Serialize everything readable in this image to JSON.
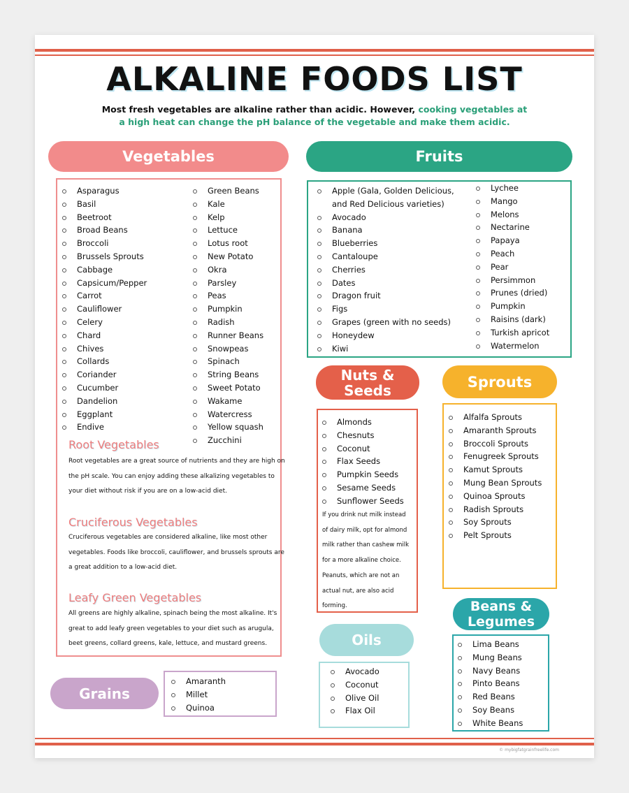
{
  "title": "ALKALINE FOODS LIST",
  "intro": {
    "plain": "Most fresh vegetables are alkaline rather than acidic. However, ",
    "highlight": "cooking vegetables at a high heat can change the pH balance of the vegetable and make them acidic."
  },
  "colors": {
    "vegetables": "#f28b8b",
    "fruits": "#2ba584",
    "nuts": "#e4604a",
    "sprouts": "#f6b22c",
    "oils": "#a7dcdc",
    "beans": "#2ba6a9",
    "grains": "#c9a5cb",
    "rules": "#e0604a"
  },
  "vegetables": {
    "title": "Vegetables",
    "col1": [
      "Asparagus",
      "Basil",
      "Beetroot",
      "Broad Beans",
      "Broccoli",
      "Brussels Sprouts",
      "Cabbage",
      "Capsicum/Pepper",
      "Carrot",
      "Cauliflower",
      "Celery",
      "Chard",
      "Chives",
      "Collards",
      "Coriander",
      "Cucumber",
      "Dandelion",
      "Eggplant",
      "Endive"
    ],
    "col2": [
      "Green Beans",
      "Kale",
      "Kelp",
      "Lettuce",
      "Lotus root",
      "New Potato",
      "Okra",
      "Parsley",
      "Peas",
      "Pumpkin",
      "Radish",
      "Runner Beans",
      "Snowpeas",
      "Spinach",
      "String Beans",
      "Sweet Potato",
      "Wakame",
      "Watercress",
      "Yellow squash",
      "Zucchini"
    ],
    "sections": [
      {
        "heading": "Root Vegetables",
        "text": "Root vegetables are a great source of nutrients and they are high on the pH scale. You can enjoy adding these alkalizing vegetables to your diet without risk if you are on a low-acid diet."
      },
      {
        "heading": "Cruciferous Vegetables",
        "text": "Cruciferous vegetables are considered alkaline, like most other vegetables. Foods like broccoli, cauliflower, and brussels sprouts are a great addition to a low-acid diet."
      },
      {
        "heading": "Leafy Green Vegetables",
        "text": "All greens are highly alkaline, spinach being the most alkaline. It's great to add leafy green vegetables to your diet such as arugula, beet greens, collard greens, kale, lettuce, and mustard greens."
      }
    ]
  },
  "fruits": {
    "title": "Fruits",
    "col1": [
      "Apple (Gala, Golden Delicious, and Red Delicious varieties)",
      "Avocado",
      "Banana",
      "Blueberries",
      "Cantaloupe",
      "Cherries",
      "Dates",
      "Dragon fruit",
      "Figs",
      "Grapes (green with no seeds)",
      "Honeydew",
      "Kiwi"
    ],
    "col2": [
      "Lychee",
      "Mango",
      "Melons",
      "Nectarine",
      "Papaya",
      "Peach",
      "Pear",
      "Persimmon",
      "Prunes (dried)",
      "Pumpkin",
      "Raisins (dark)",
      "Turkish apricot",
      "Watermelon"
    ]
  },
  "nuts": {
    "title_line1": "Nuts &",
    "title_line2": "Seeds",
    "items": [
      "Almonds",
      "Chesnuts",
      "Coconut",
      "Flax Seeds",
      "Pumpkin Seeds",
      "Sesame Seeds",
      "Sunflower Seeds"
    ],
    "note": "If you drink nut milk instead of dairy milk, opt for almond milk rather than cashew milk for a more alkaline choice. Peanuts, which are not an actual nut, are also acid forming."
  },
  "sprouts": {
    "title": "Sprouts",
    "items": [
      "Alfalfa Sprouts",
      "Amaranth Sprouts",
      "Broccoli Sprouts",
      "Fenugreek Sprouts",
      "Kamut Sprouts",
      "Mung Bean Sprouts",
      "Quinoa Sprouts",
      "Radish Sprouts",
      "Soy Sprouts",
      "Pelt Sprouts"
    ]
  },
  "beans": {
    "title_line1": "Beans &",
    "title_line2": "Legumes",
    "items": [
      "Lima Beans",
      "Mung Beans",
      "Navy Beans",
      "Pinto Beans",
      "Red Beans",
      "Soy Beans",
      "White Beans"
    ]
  },
  "oils": {
    "title": "Oils",
    "items": [
      "Avocado",
      "Coconut",
      "Olive Oil",
      "Flax Oil"
    ]
  },
  "grains": {
    "title": "Grains",
    "items": [
      "Amaranth",
      "Millet",
      "Quinoa"
    ]
  },
  "footer": "© mybigfatgrainfreelife.com"
}
